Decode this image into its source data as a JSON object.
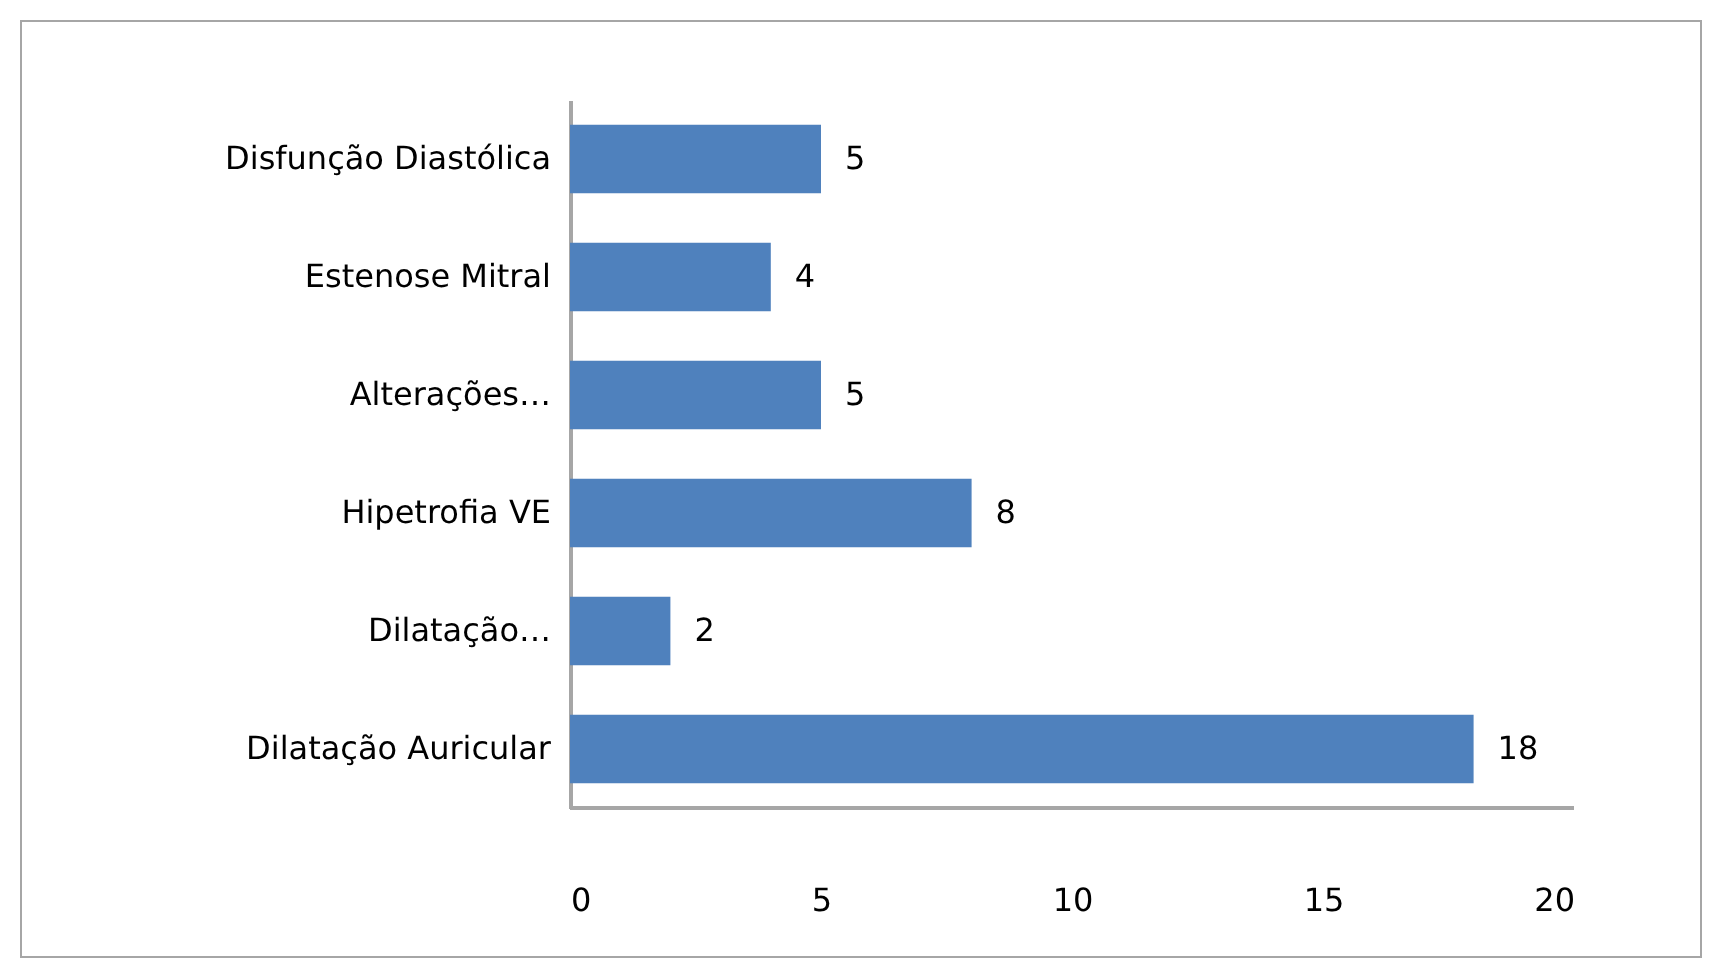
{
  "chart_data": {
    "type": "bar",
    "orientation": "horizontal",
    "categories": [
      "Disfunção Diastólica",
      "Estenose Mitral",
      "Alterações…",
      "Hipetrofia VE",
      "Dilatação…",
      "Dilatação Auricular"
    ],
    "values": [
      5,
      4,
      5,
      8,
      2,
      18
    ],
    "color": "#4f81bd",
    "xlim": [
      0,
      20
    ],
    "xticks": [
      0,
      5,
      10,
      15,
      20
    ],
    "data_labels": true
  }
}
